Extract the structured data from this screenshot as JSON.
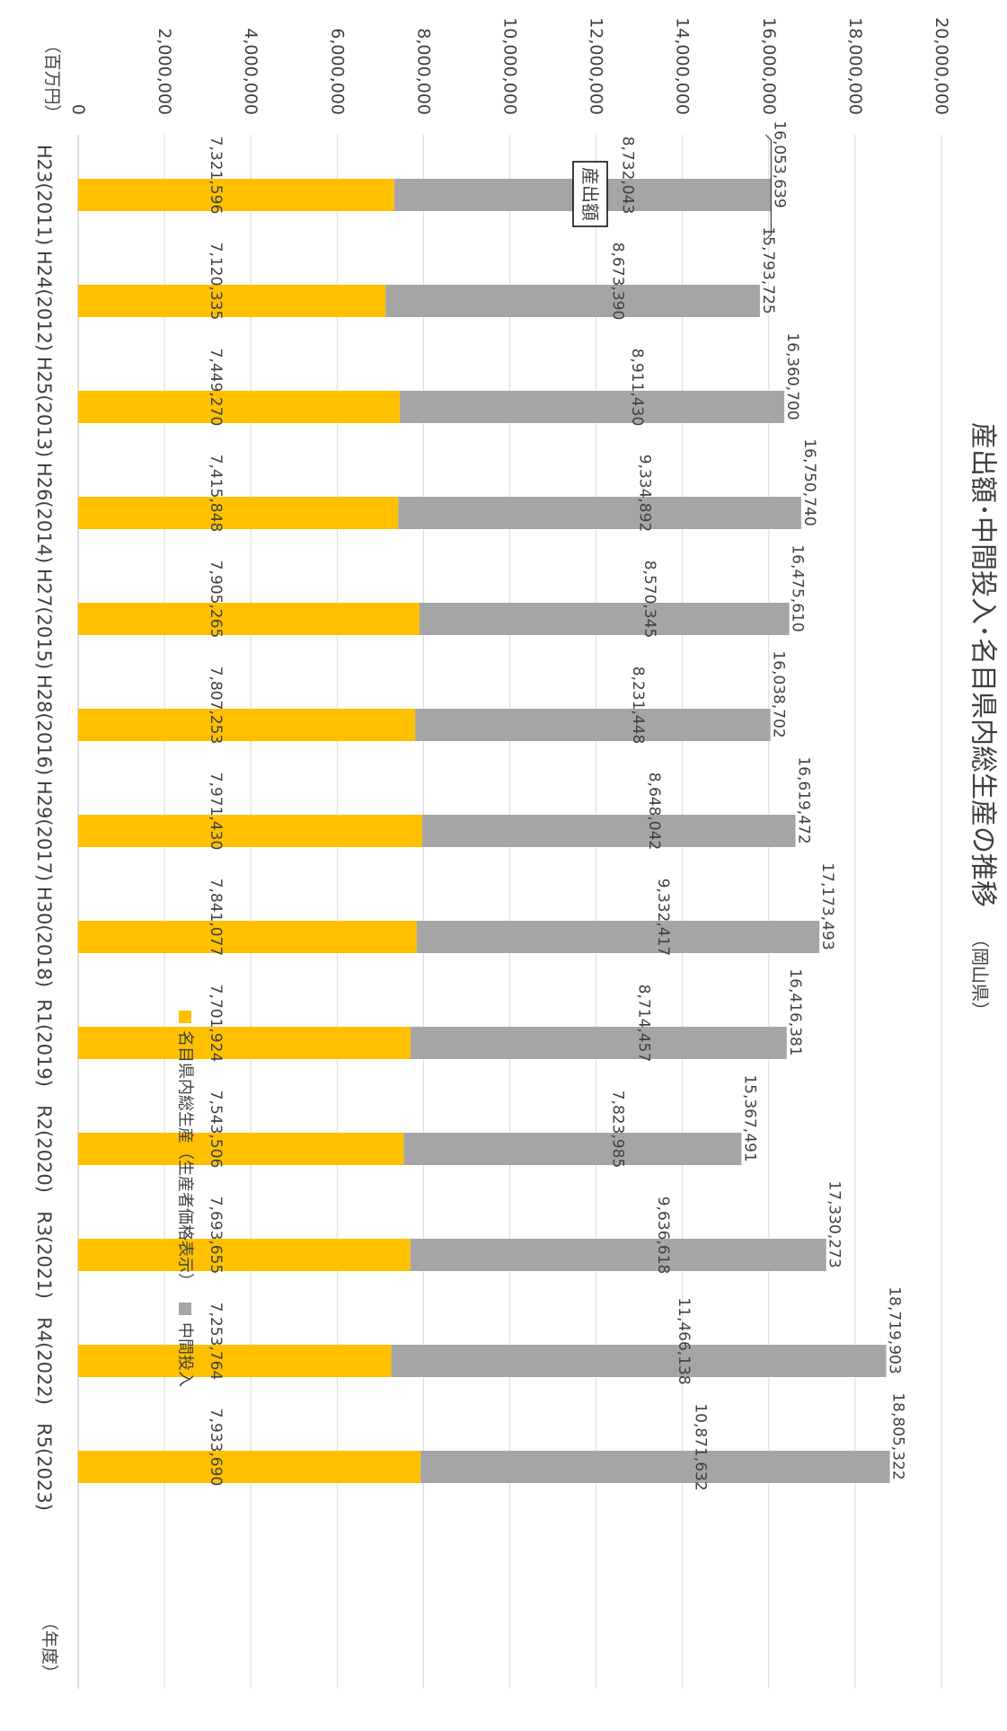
{
  "chart_data": {
    "type": "bar",
    "stacked": true,
    "orientation": "rotated-90-clockwise",
    "title": "産出額･中間投入･名目県内総生産の推移",
    "subtitle": "（岡山県）",
    "ylabel": "（百万円）",
    "xlabel": "（年度）",
    "ylim": [
      0,
      20000000
    ],
    "yticks": [
      0,
      2000000,
      4000000,
      6000000,
      8000000,
      10000000,
      12000000,
      14000000,
      16000000,
      18000000,
      20000000
    ],
    "ytick_labels": [
      "0",
      "2,000,000",
      "4,000,000",
      "6,000,000",
      "8,000,000",
      "10,000,000",
      "12,000,000",
      "14,000,000",
      "16,000,000",
      "18,000,000",
      "20,000,000"
    ],
    "grid": true,
    "legend_position": "bottom",
    "categories": [
      "H23(2011)",
      "H24(2012)",
      "H25(2013)",
      "H26(2014)",
      "H27(2015)",
      "H28(2016)",
      "H29(2017)",
      "H30(2018)",
      "R1(2019)",
      "R2(2020)",
      "R3(2021)",
      "R4(2022)",
      "R5(2023)"
    ],
    "series": [
      {
        "name": "名目県内総生産（生産者価格表示）",
        "color": "#FFC000",
        "values": [
          7321596,
          7120335,
          7449270,
          7415848,
          7905265,
          7807253,
          7971430,
          7841077,
          7701924,
          7543506,
          7693655,
          7253764,
          7933690
        ],
        "labels": [
          "7,321,596",
          "7,120,335",
          "7,449,270",
          "7,415,848",
          "7,905,265",
          "7,807,253",
          "7,971,430",
          "7,841,077",
          "7,701,924",
          "7,543,506",
          "7,693,655",
          "7,253,764",
          "7,933,690"
        ]
      },
      {
        "name": "中間投入",
        "color": "#A5A5A5",
        "values": [
          8732043,
          8673390,
          8911430,
          9334892,
          8570345,
          8231448,
          8648042,
          9332417,
          8714457,
          7823985,
          9636618,
          11466138,
          10871632
        ],
        "labels": [
          "8,732,043",
          "8,673,390",
          "8,911,430",
          "9,334,892",
          "8,570,345",
          "8,231,448",
          "8,648,042",
          "9,332,417",
          "8,714,457",
          "7,823,985",
          "9,636,618",
          "11,466,138",
          "10,871,632"
        ]
      }
    ],
    "totals": [
      16053639,
      15793725,
      16360700,
      16750740,
      16475610,
      16038702,
      16619472,
      17173493,
      16416381,
      15367491,
      17330273,
      18719903,
      18805322
    ],
    "total_labels": [
      "16,053,639",
      "15,793,725",
      "16,360,700",
      "16,750,740",
      "16,475,610",
      "16,038,702",
      "16,619,472",
      "17,173,493",
      "16,416,381",
      "15,367,491",
      "17,330,273",
      "18,719,903",
      "18,805,322"
    ],
    "annotation": "産出額"
  }
}
